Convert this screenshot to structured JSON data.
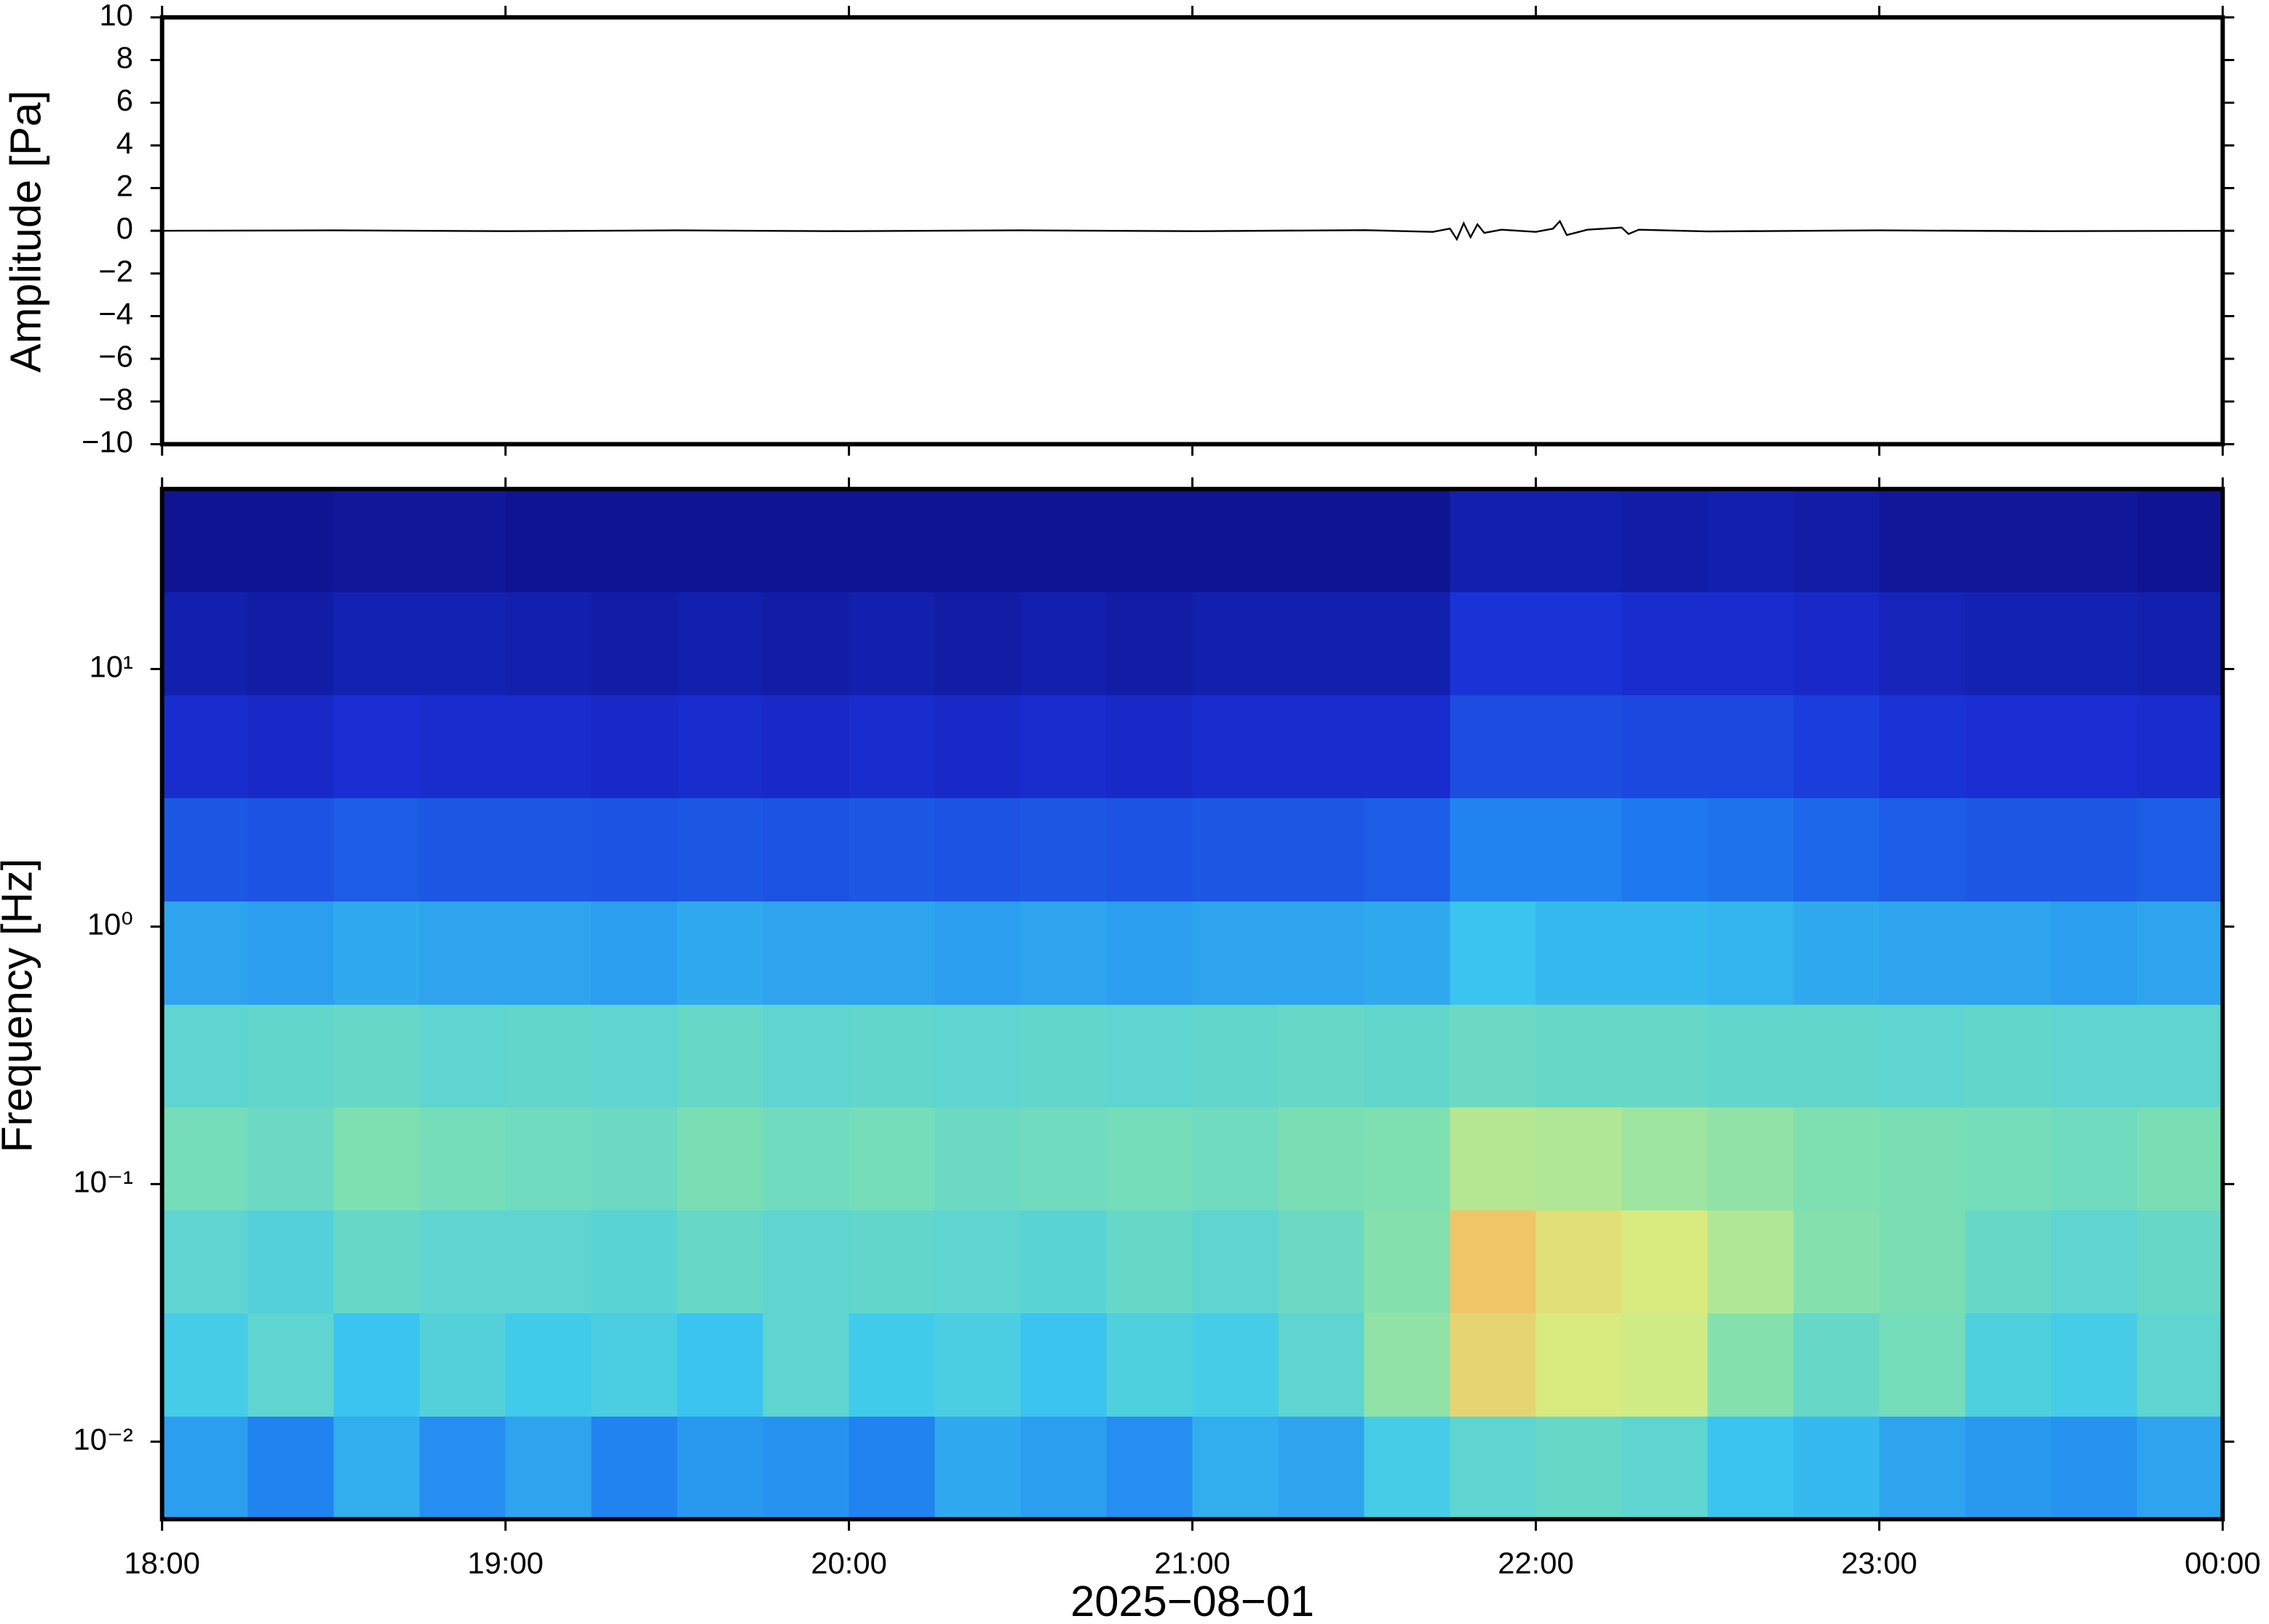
{
  "chart_data": [
    {
      "type": "line",
      "ylabel": "Amplitude [Pa]",
      "color": "#000000",
      "x": [
        18,
        18.5,
        19,
        19.5,
        20,
        20.5,
        21,
        21.5,
        21.7,
        21.75,
        21.77,
        21.79,
        21.81,
        21.83,
        21.85,
        21.9,
        22,
        22.05,
        22.07,
        22.09,
        22.15,
        22.25,
        22.27,
        22.3,
        22.5,
        23,
        23.5,
        24
      ],
      "values": [
        0,
        0.02,
        -0.02,
        0.02,
        -0.02,
        0.02,
        -0.02,
        0.03,
        -0.05,
        0.1,
        -0.4,
        0.35,
        -0.3,
        0.3,
        -0.1,
        0.05,
        -0.05,
        0.1,
        0.45,
        -0.2,
        0.05,
        0.15,
        -0.15,
        0.05,
        -0.03,
        0.02,
        -0.02,
        0
      ],
      "xlim": [
        18,
        24
      ],
      "xticks": [
        18,
        19,
        20,
        21,
        22,
        23,
        24
      ],
      "ylim": [
        -10,
        10
      ],
      "yticks": [
        {
          "value": -10,
          "label": "−10"
        },
        {
          "value": -8,
          "label": "−8"
        },
        {
          "value": -6,
          "label": "−6"
        },
        {
          "value": -4,
          "label": "−4"
        },
        {
          "value": -2,
          "label": "−2"
        },
        0,
        2,
        4,
        6,
        8,
        10
      ]
    },
    {
      "type": "heatmap",
      "ylabel": "Frequency [Hz]",
      "xlabel": "2025−08−01",
      "yscale": "log",
      "colormap": [
        "#0b0b78",
        "#1a2fd6",
        "#1e7bf0",
        "#3cc9ef",
        "#7fe0b0",
        "#d8ec80",
        "#f6b860",
        "#ee5a2c"
      ],
      "clim": [
        0,
        1
      ],
      "x_edges": [
        18,
        18.25,
        18.5,
        18.75,
        19,
        19.25,
        19.5,
        19.75,
        20,
        20.25,
        20.5,
        20.75,
        21,
        21.25,
        21.5,
        21.75,
        22,
        22.25,
        22.5,
        22.75,
        23,
        23.25,
        23.5,
        23.75,
        24
      ],
      "y_edges": [
        0.005,
        0.0126,
        0.0317,
        0.0796,
        0.2,
        0.5,
        1.26,
        3.17,
        7.96,
        20,
        50
      ],
      "values": [
        [
          0.35,
          0.3,
          0.38,
          0.32,
          0.36,
          0.3,
          0.34,
          0.33,
          0.3,
          0.37,
          0.35,
          0.32,
          0.38,
          0.36,
          0.45,
          0.5,
          0.52,
          0.5,
          0.42,
          0.4,
          0.36,
          0.34,
          0.33,
          0.36
        ],
        [
          0.45,
          0.5,
          0.42,
          0.48,
          0.44,
          0.46,
          0.42,
          0.5,
          0.44,
          0.46,
          0.42,
          0.47,
          0.45,
          0.5,
          0.6,
          0.78,
          0.72,
          0.7,
          0.58,
          0.52,
          0.55,
          0.47,
          0.45,
          0.5
        ],
        [
          0.5,
          0.48,
          0.52,
          0.5,
          0.5,
          0.49,
          0.52,
          0.5,
          0.51,
          0.5,
          0.49,
          0.52,
          0.5,
          0.53,
          0.58,
          0.82,
          0.75,
          0.72,
          0.65,
          0.58,
          0.56,
          0.52,
          0.5,
          0.52
        ],
        [
          0.55,
          0.53,
          0.57,
          0.55,
          0.54,
          0.53,
          0.56,
          0.54,
          0.55,
          0.53,
          0.54,
          0.55,
          0.54,
          0.56,
          0.57,
          0.66,
          0.65,
          0.62,
          0.6,
          0.57,
          0.56,
          0.55,
          0.54,
          0.56
        ],
        [
          0.5,
          0.51,
          0.52,
          0.5,
          0.51,
          0.5,
          0.52,
          0.5,
          0.51,
          0.5,
          0.51,
          0.5,
          0.51,
          0.52,
          0.51,
          0.53,
          0.52,
          0.52,
          0.51,
          0.51,
          0.5,
          0.51,
          0.5,
          0.5
        ],
        [
          0.36,
          0.35,
          0.37,
          0.36,
          0.36,
          0.35,
          0.37,
          0.36,
          0.36,
          0.35,
          0.36,
          0.35,
          0.36,
          0.36,
          0.37,
          0.42,
          0.4,
          0.4,
          0.39,
          0.37,
          0.36,
          0.36,
          0.35,
          0.36
        ],
        [
          0.22,
          0.21,
          0.23,
          0.22,
          0.22,
          0.21,
          0.22,
          0.21,
          0.22,
          0.21,
          0.22,
          0.21,
          0.22,
          0.22,
          0.23,
          0.3,
          0.3,
          0.28,
          0.27,
          0.25,
          0.23,
          0.22,
          0.22,
          0.23
        ],
        [
          0.13,
          0.12,
          0.14,
          0.13,
          0.13,
          0.12,
          0.13,
          0.12,
          0.13,
          0.12,
          0.13,
          0.12,
          0.13,
          0.13,
          0.13,
          0.2,
          0.2,
          0.19,
          0.19,
          0.17,
          0.15,
          0.14,
          0.14,
          0.13
        ],
        [
          0.08,
          0.07,
          0.09,
          0.09,
          0.08,
          0.07,
          0.08,
          0.07,
          0.08,
          0.07,
          0.08,
          0.07,
          0.08,
          0.08,
          0.08,
          0.15,
          0.15,
          0.13,
          0.13,
          0.12,
          0.1,
          0.09,
          0.09,
          0.08
        ],
        [
          0.04,
          0.04,
          0.05,
          0.05,
          0.04,
          0.04,
          0.04,
          0.04,
          0.04,
          0.04,
          0.04,
          0.04,
          0.04,
          0.04,
          0.04,
          0.08,
          0.08,
          0.07,
          0.08,
          0.07,
          0.05,
          0.05,
          0.05,
          0.04
        ]
      ],
      "xlim": [
        18,
        24
      ],
      "xticks": [
        {
          "value": 18,
          "label": "18:00"
        },
        {
          "value": 19,
          "label": "19:00"
        },
        {
          "value": 20,
          "label": "20:00"
        },
        {
          "value": 21,
          "label": "21:00"
        },
        {
          "value": 22,
          "label": "22:00"
        },
        {
          "value": 23,
          "label": "23:00"
        },
        {
          "value": 24,
          "label": "00:00"
        }
      ],
      "ylim": [
        0.005,
        50
      ],
      "yticks": [
        {
          "value": 0.01,
          "label": "10⁻²"
        },
        {
          "value": 0.1,
          "label": "10⁻¹"
        },
        {
          "value": 1,
          "label": "10⁰"
        },
        {
          "value": 10,
          "label": "10¹"
        }
      ]
    }
  ]
}
